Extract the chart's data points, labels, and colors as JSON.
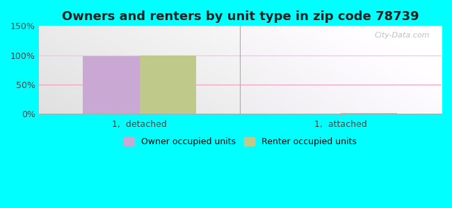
{
  "title": "Owners and renters by unit type in zip code 78739",
  "categories": [
    "1,  detached",
    "1,  attached"
  ],
  "owner_values": [
    98,
    0
  ],
  "renter_values": [
    100,
    1
  ],
  "owner_color": "#c9a8d4",
  "renter_color": "#bec98a",
  "bar_width": 0.28,
  "ylim": [
    0,
    150
  ],
  "yticks": [
    0,
    50,
    100,
    150
  ],
  "yticklabels": [
    "0%",
    "50%",
    "100%",
    "150%"
  ],
  "outer_bg": "#00ffff",
  "plot_bg_left": "#c8e6c8",
  "plot_bg_right": "#f0fff8",
  "legend_owner": "Owner occupied units",
  "legend_renter": "Renter occupied units",
  "watermark": "City-Data.com",
  "title_fontsize": 13,
  "tick_fontsize": 9,
  "legend_fontsize": 9,
  "grid_color": "#e8c8d8",
  "grid_color_100": "#e0d0e0"
}
